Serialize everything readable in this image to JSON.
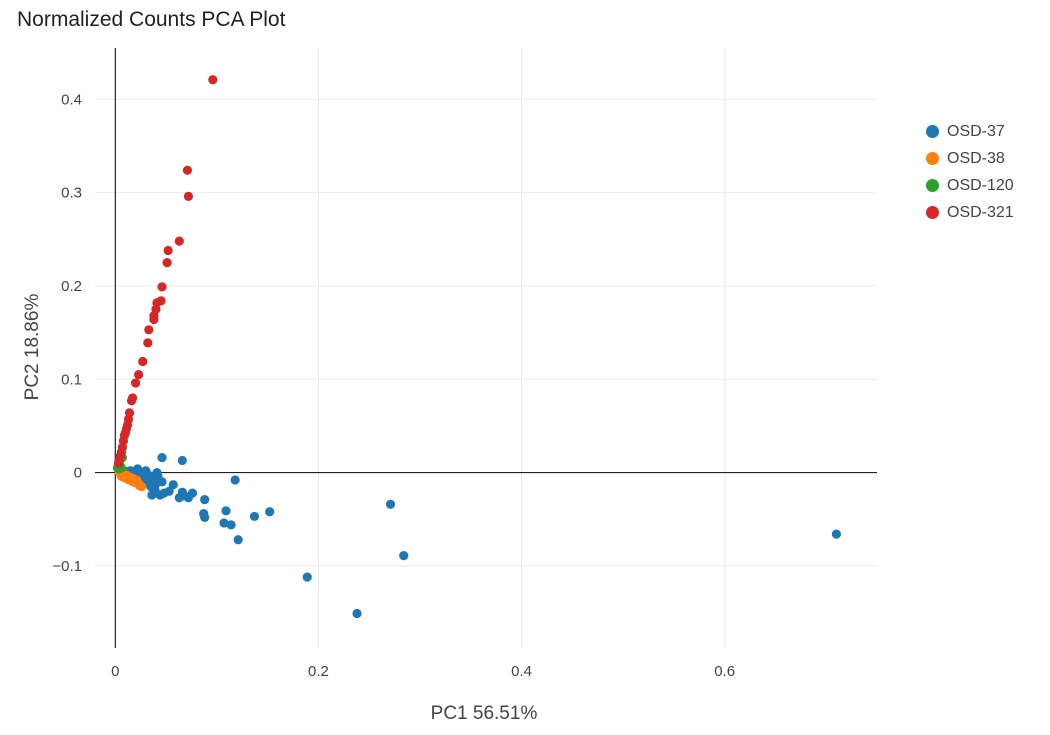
{
  "chart_data": {
    "type": "scatter",
    "title": "Normalized Counts PCA Plot",
    "xlabel": "PC1 56.51%",
    "ylabel": "PC2 18.86%",
    "xlim": [
      -0.02,
      0.75
    ],
    "ylim": [
      -0.188,
      0.455
    ],
    "x_ticks": [
      0,
      0.2,
      0.4,
      0.6
    ],
    "x_tick_labels": [
      "0",
      "0.2",
      "0.4",
      "0.6"
    ],
    "y_ticks": [
      -0.1,
      0,
      0.1,
      0.2,
      0.3,
      0.4
    ],
    "y_tick_labels": [
      "−0.1",
      "0",
      "0.1",
      "0.2",
      "0.3",
      "0.4"
    ],
    "grid": true,
    "legend_position": "top-right",
    "series": [
      {
        "name": "OSD-37",
        "color": "#1f77b4",
        "points": [
          [
            0.71,
            -0.066
          ],
          [
            0.284,
            -0.089
          ],
          [
            0.271,
            -0.034
          ],
          [
            0.238,
            -0.151
          ],
          [
            0.189,
            -0.112
          ],
          [
            0.152,
            -0.042
          ],
          [
            0.137,
            -0.047
          ],
          [
            0.121,
            -0.072
          ],
          [
            0.118,
            -0.008
          ],
          [
            0.114,
            -0.056
          ],
          [
            0.109,
            -0.041
          ],
          [
            0.107,
            -0.054
          ],
          [
            0.088,
            -0.029
          ],
          [
            0.088,
            -0.048
          ],
          [
            0.087,
            -0.044
          ],
          [
            0.076,
            -0.022
          ],
          [
            0.072,
            -0.027
          ],
          [
            0.068,
            -0.025
          ],
          [
            0.066,
            0.013
          ],
          [
            0.066,
            -0.021
          ],
          [
            0.063,
            -0.027
          ],
          [
            0.057,
            -0.013
          ],
          [
            0.053,
            -0.02
          ],
          [
            0.048,
            -0.022
          ],
          [
            0.046,
            0.016
          ],
          [
            0.046,
            -0.01
          ],
          [
            0.044,
            -0.024
          ],
          [
            0.042,
            -0.004
          ],
          [
            0.041,
            0.0
          ],
          [
            0.04,
            -0.012
          ],
          [
            0.039,
            -0.018
          ],
          [
            0.037,
            -0.007
          ],
          [
            0.036,
            -0.024
          ],
          [
            0.035,
            -0.015
          ],
          [
            0.033,
            -0.003
          ],
          [
            0.031,
            -0.011
          ],
          [
            0.03,
            0.002
          ],
          [
            0.028,
            -0.005
          ],
          [
            0.027,
            -0.012
          ],
          [
            0.025,
            0.0
          ],
          [
            0.023,
            -0.006
          ],
          [
            0.022,
            0.004
          ],
          [
            0.02,
            -0.002
          ],
          [
            0.019,
            -0.008
          ],
          [
            0.017,
            -0.003
          ],
          [
            0.015,
            0.002
          ],
          [
            0.013,
            -0.001
          ],
          [
            0.011,
            0.001
          ]
        ]
      },
      {
        "name": "OSD-38",
        "color": "#ff7f0e",
        "points": [
          [
            0.004,
            0.0
          ],
          [
            0.006,
            -0.004
          ],
          [
            0.008,
            -0.005
          ],
          [
            0.009,
            -0.002
          ],
          [
            0.01,
            -0.006
          ],
          [
            0.012,
            -0.007
          ],
          [
            0.013,
            -0.004
          ],
          [
            0.014,
            -0.008
          ],
          [
            0.016,
            -0.009
          ],
          [
            0.017,
            -0.006
          ],
          [
            0.018,
            -0.01
          ],
          [
            0.02,
            -0.011
          ],
          [
            0.021,
            -0.008
          ],
          [
            0.023,
            -0.012
          ],
          [
            0.024,
            -0.014
          ],
          [
            0.026,
            -0.015
          ],
          [
            0.007,
            -0.001
          ],
          [
            0.011,
            -0.003
          ]
        ]
      },
      {
        "name": "OSD-120",
        "color": "#2ca02c",
        "points": [
          [
            0.002,
            0.005
          ],
          [
            0.003,
            0.006
          ],
          [
            0.004,
            0.004
          ],
          [
            0.005,
            0.007
          ],
          [
            0.006,
            0.005
          ],
          [
            0.007,
            0.016
          ]
        ]
      },
      {
        "name": "OSD-321",
        "color": "#d62728",
        "points": [
          [
            0.096,
            0.421
          ],
          [
            0.071,
            0.324
          ],
          [
            0.072,
            0.296
          ],
          [
            0.063,
            0.248
          ],
          [
            0.052,
            0.238
          ],
          [
            0.051,
            0.225
          ],
          [
            0.046,
            0.199
          ],
          [
            0.045,
            0.184
          ],
          [
            0.041,
            0.182
          ],
          [
            0.04,
            0.175
          ],
          [
            0.038,
            0.168
          ],
          [
            0.038,
            0.164
          ],
          [
            0.033,
            0.153
          ],
          [
            0.032,
            0.139
          ],
          [
            0.027,
            0.119
          ],
          [
            0.023,
            0.105
          ],
          [
            0.02,
            0.096
          ],
          [
            0.017,
            0.08
          ],
          [
            0.016,
            0.077
          ],
          [
            0.014,
            0.064
          ],
          [
            0.013,
            0.057
          ],
          [
            0.012,
            0.051
          ],
          [
            0.011,
            0.047
          ],
          [
            0.01,
            0.043
          ],
          [
            0.009,
            0.04
          ],
          [
            0.008,
            0.034
          ],
          [
            0.007,
            0.027
          ],
          [
            0.006,
            0.022
          ],
          [
            0.005,
            0.018
          ],
          [
            0.004,
            0.013
          ],
          [
            0.003,
            0.01
          ]
        ]
      }
    ]
  }
}
